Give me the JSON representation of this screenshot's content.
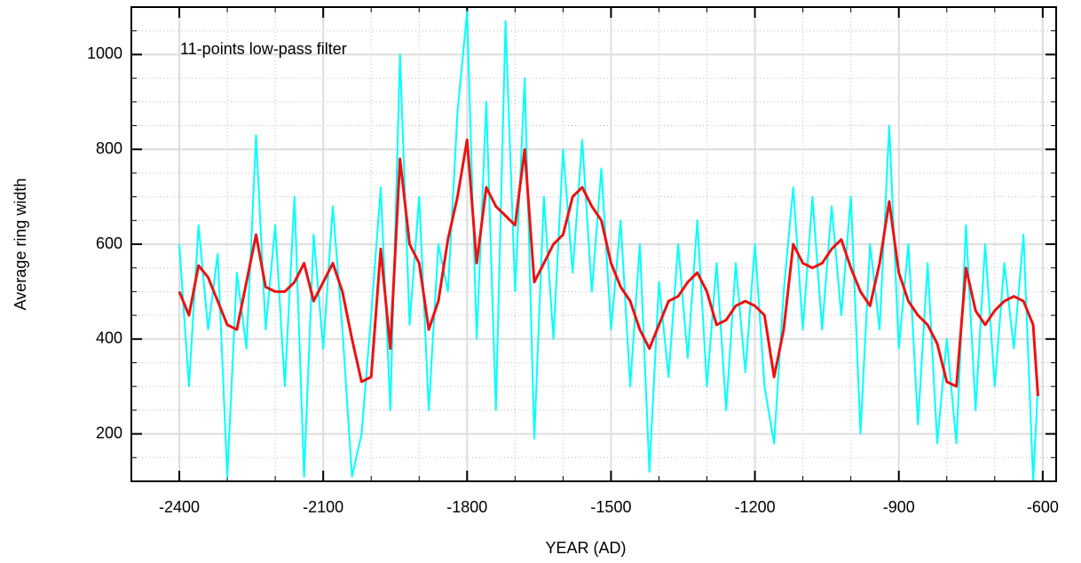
{
  "chart_data": {
    "type": "line",
    "xlabel": "YEAR (AD)",
    "ylabel": "Average ring width",
    "annotation": "11-points low-pass filter",
    "xlim": [
      -2500,
      -572
    ],
    "ylim": [
      100,
      1100
    ],
    "xticks": [
      -2400,
      -2100,
      -1800,
      -1500,
      -1200,
      -900,
      -600
    ],
    "yticks": [
      200,
      400,
      600,
      800,
      1000
    ],
    "xminorticks": [
      -2500,
      -2300,
      -2200,
      -2000,
      -1900,
      -1700,
      -1600,
      -1400,
      -1300,
      -1100,
      -1000,
      -800,
      -700
    ],
    "yminorticks": [
      100,
      150,
      250,
      300,
      350,
      450,
      500,
      550,
      650,
      700,
      750,
      850,
      900,
      950,
      1050,
      1100
    ],
    "grid": true,
    "x": [
      -2400,
      -2380,
      -2360,
      -2340,
      -2320,
      -2300,
      -2280,
      -2260,
      -2240,
      -2220,
      -2200,
      -2180,
      -2160,
      -2140,
      -2120,
      -2100,
      -2080,
      -2060,
      -2040,
      -2020,
      -2000,
      -1980,
      -1960,
      -1940,
      -1920,
      -1900,
      -1880,
      -1860,
      -1840,
      -1820,
      -1800,
      -1780,
      -1760,
      -1740,
      -1720,
      -1700,
      -1680,
      -1660,
      -1640,
      -1620,
      -1600,
      -1580,
      -1560,
      -1540,
      -1520,
      -1500,
      -1480,
      -1460,
      -1440,
      -1420,
      -1400,
      -1380,
      -1360,
      -1340,
      -1320,
      -1300,
      -1280,
      -1260,
      -1240,
      -1220,
      -1200,
      -1180,
      -1160,
      -1140,
      -1120,
      -1100,
      -1080,
      -1060,
      -1040,
      -1020,
      -1000,
      -980,
      -960,
      -940,
      -920,
      -900,
      -880,
      -860,
      -840,
      -820,
      -800,
      -780,
      -760,
      -740,
      -720,
      -700,
      -680,
      -660,
      -640,
      -620,
      -610
    ],
    "series": [
      {
        "color": "#00ffff",
        "width": 2,
        "values": [
          600,
          300,
          640,
          420,
          580,
          110,
          540,
          380,
          830,
          420,
          640,
          300,
          700,
          110,
          620,
          380,
          680,
          420,
          110,
          200,
          450,
          720,
          250,
          1000,
          430,
          700,
          250,
          600,
          500,
          880,
          1090,
          400,
          900,
          250,
          1070,
          500,
          950,
          190,
          700,
          400,
          800,
          540,
          820,
          500,
          760,
          420,
          650,
          300,
          600,
          120,
          520,
          320,
          600,
          360,
          650,
          300,
          560,
          250,
          560,
          330,
          600,
          300,
          180,
          500,
          720,
          420,
          700,
          420,
          680,
          450,
          700,
          200,
          600,
          420,
          850,
          380,
          600,
          220,
          560,
          180,
          400,
          180,
          640,
          250,
          600,
          300,
          560,
          380,
          620,
          100,
          300
        ]
      },
      {
        "color": "#ee1111",
        "width": 3,
        "values": [
          500,
          450,
          555,
          530,
          480,
          430,
          420,
          520,
          620,
          510,
          500,
          500,
          520,
          560,
          480,
          520,
          560,
          500,
          400,
          310,
          320,
          590,
          380,
          780,
          600,
          560,
          420,
          480,
          610,
          700,
          820,
          560,
          720,
          680,
          660,
          640,
          800,
          520,
          560,
          600,
          620,
          700,
          720,
          680,
          650,
          560,
          510,
          480,
          420,
          380,
          430,
          480,
          490,
          520,
          540,
          500,
          430,
          440,
          470,
          480,
          470,
          450,
          320,
          420,
          600,
          560,
          550,
          560,
          590,
          610,
          550,
          500,
          470,
          560,
          690,
          540,
          480,
          450,
          430,
          390,
          310,
          300,
          550,
          460,
          430,
          460,
          480,
          490,
          480,
          430,
          280
        ]
      }
    ]
  }
}
